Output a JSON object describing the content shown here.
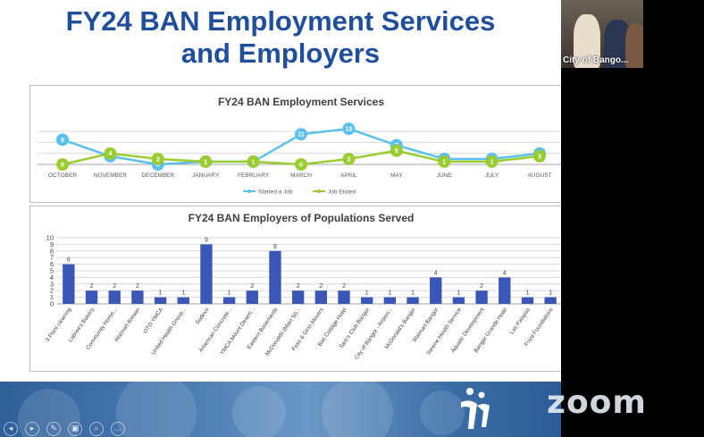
{
  "slide": {
    "title_line1": "FY24 BAN Employment Services",
    "title_line2": "and Employers"
  },
  "video": {
    "participant_name": "City of Bango..."
  },
  "branding": {
    "zoom_label": "zoom"
  },
  "toolbar": {
    "icons": [
      "pointer-icon",
      "next-icon",
      "pen-icon",
      "delete-icon",
      "zoom-in-icon",
      "more-icon"
    ]
  },
  "colors": {
    "title_blue": "#1f4e9c",
    "started": "#5bc0eb",
    "ended": "#9acd32",
    "bar": "#3a57b8"
  },
  "chart_data": [
    {
      "type": "line",
      "title": "FY24 BAN Employment Services",
      "categories": [
        "OCTOBER",
        "NOVEMBER",
        "DECEMBER",
        "JANUARY",
        "FEBRUARY",
        "MARCH",
        "APRIL",
        "MAY",
        "JUNE",
        "JULY",
        "AUGUST"
      ],
      "series": [
        {
          "name": "Started a Job",
          "values": [
            9,
            3,
            0,
            1,
            1,
            11,
            13,
            7,
            2,
            2,
            4
          ]
        },
        {
          "name": "Job Ended",
          "values": [
            0,
            4,
            2,
            1,
            1,
            0,
            2,
            5,
            1,
            1,
            3
          ]
        }
      ],
      "ylim": [
        0,
        14
      ],
      "legend": "bottom",
      "grid": true
    },
    {
      "type": "bar",
      "title": "FY24 BAN Employers of Populations Served",
      "categories": [
        "3 Point cleaning",
        "Labree's Bakery",
        "Community Home...",
        "Walmart Brewer",
        "OTO YMCA",
        "United Health Group...",
        "Sodexo",
        "American Concrete...",
        "YMCA Mount Desert...",
        "Eastern Basements",
        "McDonalds (Main St)...",
        "Foss & Ginn Movers",
        "Bas Cottage Hotel",
        "Sam's Club Bangor",
        "City of Bangor - Airport...",
        "McDonald's Bangor",
        "Walmart Bangor",
        "Serene Health Service",
        "Aquatic Development",
        "Bangor Grande Hotel",
        "Las Palapas",
        "Frost Foundations"
      ],
      "values": [
        6,
        2,
        2,
        2,
        1,
        1,
        9,
        1,
        2,
        8,
        2,
        2,
        2,
        1,
        1,
        1,
        4,
        1,
        2,
        4,
        1,
        1
      ],
      "yticks": [
        "0",
        "1",
        "2",
        "3",
        "4",
        "5",
        "6",
        "7",
        "8",
        "9",
        "10"
      ],
      "ylim": [
        0,
        10
      ],
      "grid": true
    }
  ]
}
